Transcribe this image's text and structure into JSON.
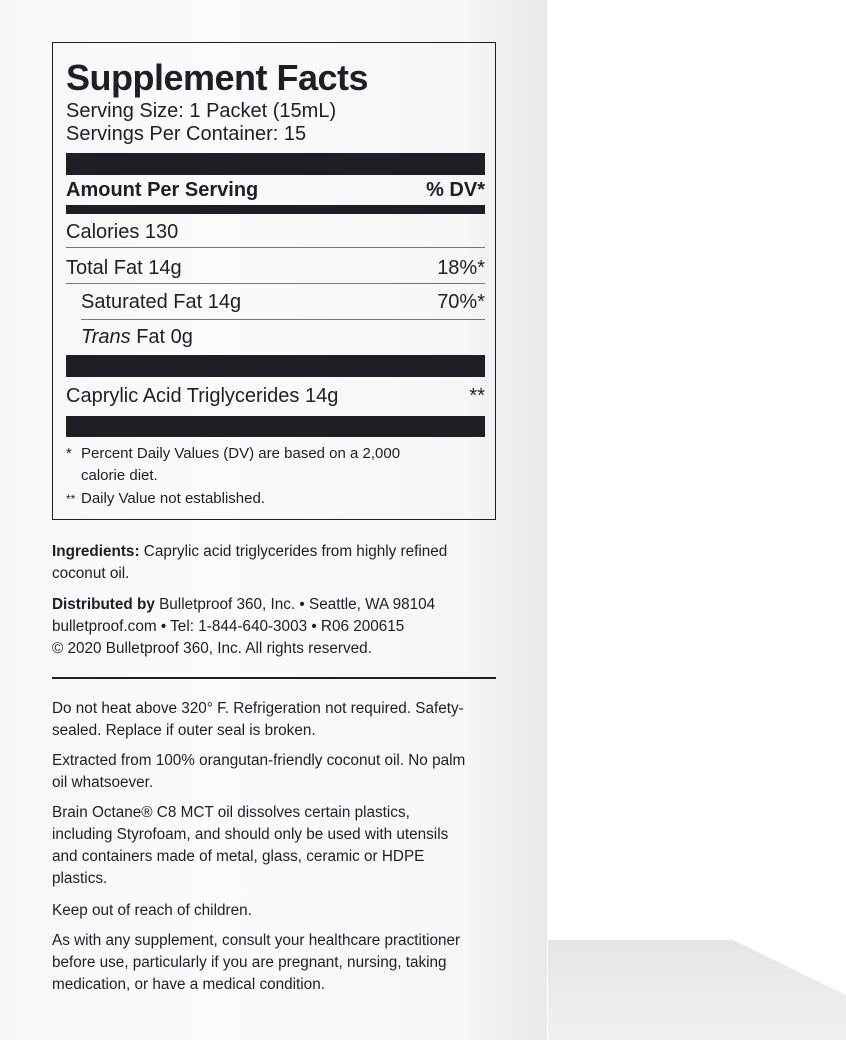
{
  "facts": {
    "title": "Supplement Facts",
    "serving_size": "Serving Size: 1 Packet (15mL)",
    "servings_per_container": "Servings Per Container: 15",
    "amount_header": "Amount Per Serving",
    "dv_header": "% DV*",
    "rows": [
      {
        "label": "Calories 130",
        "dv": ""
      },
      {
        "label": "Total Fat 14g",
        "dv": "18%*"
      },
      {
        "label": "Saturated Fat 14g",
        "dv": "70%*"
      },
      {
        "label_italic": "Trans",
        "label": " Fat 0g",
        "dv": ""
      },
      {
        "label": "Caprylic Acid Triglycerides 14g",
        "dv": "**"
      }
    ],
    "footnote1_mark": "*",
    "footnote1_line1": "Percent Daily Values (DV) are based on a 2,000",
    "footnote1_line2": "calorie diet.",
    "footnote2_mark": "**",
    "footnote2": "Daily Value not established."
  },
  "ingredients": {
    "label": "Ingredients:",
    "text": " Caprylic acid triglycerides from highly refined coconut oil."
  },
  "distributor": {
    "label": "Distributed by",
    "line1": " Bulletproof 360, Inc. • Seattle, WA 98104",
    "line2": "bulletproof.com • Tel: 1-844-640-3003 • R06 200615",
    "line3": "© 2020 Bulletproof 360, Inc. All rights reserved."
  },
  "notes": [
    "Do not heat above 320° F. Refrigeration not required. Safety-sealed. Replace if outer seal is broken.",
    "Extracted from 100% orangutan-friendly coconut oil. No palm oil whatsoever.",
    "Brain Octane® C8 MCT oil dissolves certain plastics, including Styrofoam, and should only be used with utensils and containers made of metal, glass, ceramic or HDPE plastics.",
    "Keep out of reach of children.",
    "As with any supplement, consult your healthcare practitioner before use, particularly if you are pregnant, nursing, taking medication, or have a medical condition."
  ]
}
